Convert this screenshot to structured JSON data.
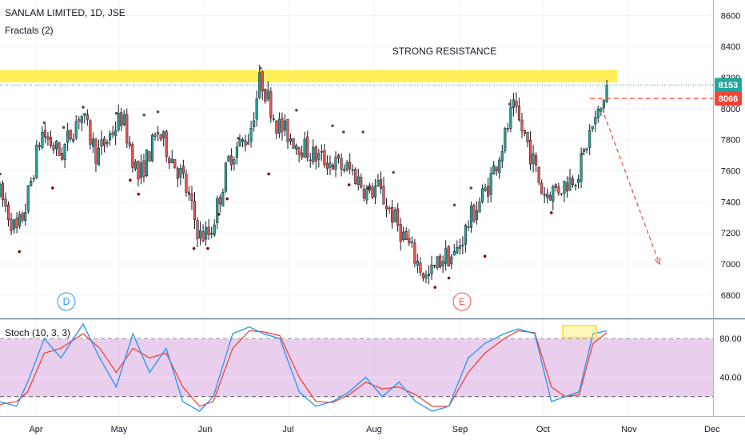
{
  "header": {
    "symbol": "SANLAM LIMITED, 1D, JSE",
    "indicator": "Fractals (2)"
  },
  "colors": {
    "up": "#26a69a",
    "down": "#ef5350",
    "wick": "#131722",
    "resistance_band": "#ffeb3b",
    "stoch_bg": "#e1bee7",
    "stoch_k": "#2196f3",
    "stoch_d": "#f44336",
    "price_tag": "#26a69a",
    "level_tag": "#f44336"
  },
  "annotations": {
    "resistance_label": "STRONG RESISTANCE",
    "marker_d": "D",
    "marker_e": "E"
  },
  "price_tags": {
    "current": "8153",
    "level": "8066"
  },
  "chart_data": [
    {
      "type": "candlestick",
      "title": "SANLAM LIMITED, 1D, JSE",
      "ylim": [
        6650,
        8700
      ],
      "y_ticks": [
        "8600",
        "8400",
        "8200",
        "8000",
        "7800",
        "7600",
        "7400",
        "7200",
        "7000",
        "6800"
      ],
      "x_ticks": [
        "Apr",
        "May",
        "Jun",
        "Jul",
        "Aug",
        "Sep",
        "Oct",
        "Nov",
        "Dec"
      ],
      "resistance_zone": [
        8170,
        8250
      ],
      "current_price_line": 8153,
      "projection_level": 8066,
      "projection_target": 7000,
      "swing_path": [
        [
          "2019-03-19",
          7450
        ],
        [
          "2019-03-25",
          7200
        ],
        [
          "2019-03-28",
          7350
        ],
        [
          "2019-04-03",
          7850
        ],
        [
          "2019-04-10",
          7700
        ],
        [
          "2019-04-17",
          7980
        ],
        [
          "2019-04-23",
          7700
        ],
        [
          "2019-05-02",
          7950
        ],
        [
          "2019-05-08",
          7550
        ],
        [
          "2019-05-15",
          7850
        ],
        [
          "2019-05-24",
          7550
        ],
        [
          "2019-05-30",
          7180
        ],
        [
          "2019-06-03",
          7200
        ],
        [
          "2019-06-10",
          7700
        ],
        [
          "2019-06-17",
          7830
        ],
        [
          "2019-06-21",
          8200
        ],
        [
          "2019-06-27",
          7900
        ],
        [
          "2019-07-03",
          7800
        ],
        [
          "2019-07-10",
          7700
        ],
        [
          "2019-07-17",
          7650
        ],
        [
          "2019-07-24",
          7600
        ],
        [
          "2019-07-30",
          7450
        ],
        [
          "2019-08-02",
          7500
        ],
        [
          "2019-08-08",
          7300
        ],
        [
          "2019-08-14",
          7100
        ],
        [
          "2019-08-20",
          6900
        ],
        [
          "2019-08-26",
          7050
        ],
        [
          "2019-08-30",
          7050
        ],
        [
          "2019-09-05",
          7300
        ],
        [
          "2019-09-11",
          7500
        ],
        [
          "2019-09-17",
          7800
        ],
        [
          "2019-09-20",
          8000
        ],
        [
          "2019-09-25",
          7800
        ],
        [
          "2019-10-01",
          7450
        ],
        [
          "2019-10-08",
          7500
        ],
        [
          "2019-10-14",
          7600
        ],
        [
          "2019-10-18",
          7850
        ],
        [
          "2019-10-22",
          8000
        ],
        [
          "2019-10-24",
          8153
        ]
      ],
      "fractals_up": [
        [
          "2019-03-19",
          7580
        ],
        [
          "2019-04-04",
          7910
        ],
        [
          "2019-04-11",
          7880
        ],
        [
          "2019-04-18",
          8010
        ],
        [
          "2019-04-30",
          7970
        ],
        [
          "2019-05-10",
          7960
        ],
        [
          "2019-05-15",
          7980
        ],
        [
          "2019-06-13",
          7810
        ],
        [
          "2019-06-21",
          8260
        ],
        [
          "2019-07-04",
          7990
        ],
        [
          "2019-07-17",
          7890
        ],
        [
          "2019-07-21",
          7850
        ],
        [
          "2019-07-28",
          7850
        ],
        [
          "2019-08-08",
          7590
        ],
        [
          "2019-08-30",
          7380
        ],
        [
          "2019-09-05",
          7490
        ],
        [
          "2019-09-19",
          8030
        ],
        [
          "2019-10-15",
          7710
        ]
      ],
      "fractals_down": [
        [
          "2019-03-26",
          7080
        ],
        [
          "2019-04-07",
          7490
        ],
        [
          "2019-05-05",
          7540
        ],
        [
          "2019-05-08",
          7450
        ],
        [
          "2019-05-28",
          7100
        ],
        [
          "2019-06-02",
          7100
        ],
        [
          "2019-06-06",
          7320
        ],
        [
          "2019-06-09",
          7420
        ],
        [
          "2019-06-24",
          7580
        ],
        [
          "2019-07-23",
          7510
        ],
        [
          "2019-07-30",
          7490
        ],
        [
          "2019-08-23",
          6850
        ],
        [
          "2019-08-28",
          6910
        ],
        [
          "2019-09-10",
          7050
        ],
        [
          "2019-10-04",
          7330
        ]
      ]
    },
    {
      "type": "line",
      "title": "Stoch (10, 3, 3)",
      "ylim": [
        0,
        100
      ],
      "y_ticks": [
        "80.00",
        "40.00"
      ],
      "bands": [
        20,
        80
      ],
      "series": [
        {
          "name": "%K",
          "points": [
            [
              "2019-03-19",
              15
            ],
            [
              "2019-03-25",
              10
            ],
            [
              "2019-03-29",
              35
            ],
            [
              "2019-04-04",
              80
            ],
            [
              "2019-04-10",
              60
            ],
            [
              "2019-04-18",
              95
            ],
            [
              "2019-04-24",
              60
            ],
            [
              "2019-04-30",
              30
            ],
            [
              "2019-05-06",
              85
            ],
            [
              "2019-05-12",
              45
            ],
            [
              "2019-05-18",
              70
            ],
            [
              "2019-05-24",
              15
            ],
            [
              "2019-05-30",
              5
            ],
            [
              "2019-06-04",
              20
            ],
            [
              "2019-06-11",
              85
            ],
            [
              "2019-06-17",
              92
            ],
            [
              "2019-06-22",
              85
            ],
            [
              "2019-06-28",
              80
            ],
            [
              "2019-07-05",
              25
            ],
            [
              "2019-07-11",
              10
            ],
            [
              "2019-07-17",
              15
            ],
            [
              "2019-07-23",
              25
            ],
            [
              "2019-07-29",
              40
            ],
            [
              "2019-08-04",
              20
            ],
            [
              "2019-08-10",
              35
            ],
            [
              "2019-08-16",
              15
            ],
            [
              "2019-08-22",
              5
            ],
            [
              "2019-08-28",
              10
            ],
            [
              "2019-09-04",
              60
            ],
            [
              "2019-09-10",
              75
            ],
            [
              "2019-09-17",
              85
            ],
            [
              "2019-09-22",
              90
            ],
            [
              "2019-09-28",
              85
            ],
            [
              "2019-10-04",
              15
            ],
            [
              "2019-10-09",
              20
            ],
            [
              "2019-10-14",
              25
            ],
            [
              "2019-10-19",
              85
            ],
            [
              "2019-10-24",
              88
            ]
          ]
        },
        {
          "name": "%D",
          "points": [
            [
              "2019-03-19",
              12
            ],
            [
              "2019-03-25",
              15
            ],
            [
              "2019-03-29",
              25
            ],
            [
              "2019-04-04",
              65
            ],
            [
              "2019-04-10",
              70
            ],
            [
              "2019-04-18",
              85
            ],
            [
              "2019-04-24",
              70
            ],
            [
              "2019-04-30",
              45
            ],
            [
              "2019-05-06",
              70
            ],
            [
              "2019-05-12",
              60
            ],
            [
              "2019-05-18",
              65
            ],
            [
              "2019-05-24",
              30
            ],
            [
              "2019-05-30",
              10
            ],
            [
              "2019-06-04",
              15
            ],
            [
              "2019-06-11",
              70
            ],
            [
              "2019-06-17",
              88
            ],
            [
              "2019-06-22",
              87
            ],
            [
              "2019-06-28",
              83
            ],
            [
              "2019-07-05",
              40
            ],
            [
              "2019-07-11",
              15
            ],
            [
              "2019-07-17",
              14
            ],
            [
              "2019-07-23",
              22
            ],
            [
              "2019-07-29",
              35
            ],
            [
              "2019-08-04",
              28
            ],
            [
              "2019-08-10",
              30
            ],
            [
              "2019-08-16",
              22
            ],
            [
              "2019-08-22",
              10
            ],
            [
              "2019-08-28",
              10
            ],
            [
              "2019-09-04",
              45
            ],
            [
              "2019-09-10",
              65
            ],
            [
              "2019-09-17",
              80
            ],
            [
              "2019-09-22",
              88
            ],
            [
              "2019-09-28",
              86
            ],
            [
              "2019-10-04",
              30
            ],
            [
              "2019-10-09",
              20
            ],
            [
              "2019-10-14",
              22
            ],
            [
              "2019-10-19",
              75
            ],
            [
              "2019-10-24",
              86
            ]
          ]
        }
      ]
    }
  ]
}
